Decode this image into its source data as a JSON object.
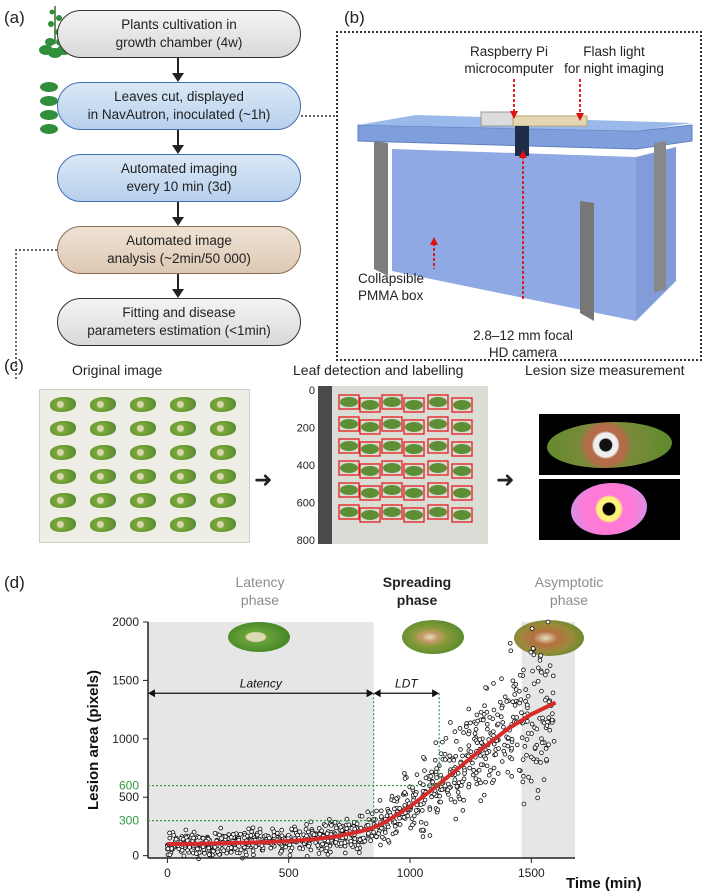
{
  "panels": {
    "a": "(a)",
    "b": "(b)",
    "c": "(c)",
    "d": "(d)"
  },
  "flow": [
    {
      "text": "Plants cultivation in\ngrowth chamber (4w)"
    },
    {
      "text": "Leaves cut, displayed\nin NavAutron, inoculated (~1h)"
    },
    {
      "text": "Automated imaging\nevery 10 min (3d)"
    },
    {
      "text": "Automated image\nanalysis (~2min/50 000)"
    },
    {
      "text": "Fitting and disease\nparameters estimation (<1min)"
    }
  ],
  "setup": {
    "raspberry": "Raspberry Pi\nmicrocomputer",
    "flash": "Flash light\nfor night imaging",
    "box": "Collapsible\nPMMA box",
    "camera": "2.8–12 mm focal\nHD camera"
  },
  "pipeline": {
    "original": "Original image",
    "detection": "Leaf detection and labelling",
    "lesion": "Lesion size measurement",
    "det_ticks": [
      "0",
      "200",
      "400",
      "600",
      "800"
    ]
  },
  "phases": {
    "latency": "Latency\nphase",
    "spreading": "Spreading\nphase",
    "asymptotic": "Asymptotic\nphase"
  },
  "annotations": {
    "latency": "Latency",
    "ldt": "LDT"
  },
  "colors": {
    "fit": "#d62b2b",
    "guide": "#2e9a3e",
    "shade": "#e6e6e6"
  },
  "chart_data": {
    "type": "scatter",
    "xlabel": "Time (min)",
    "ylabel": "Lesion area (pixels)",
    "xlim": [
      -80,
      1680
    ],
    "ylim": [
      -20,
      2000
    ],
    "x_ticks": [
      0,
      500,
      1000,
      1500
    ],
    "y_ticks": [
      0,
      500,
      1000,
      1500,
      2000
    ],
    "highlight_ticks": [
      300,
      600
    ],
    "latency_end": 850,
    "ldt_end": 1120,
    "asymptotic_start": 1460,
    "fit_curve": {
      "x": [
        0,
        100,
        200,
        300,
        400,
        500,
        600,
        700,
        800,
        850,
        900,
        1000,
        1100,
        1200,
        1300,
        1400,
        1500,
        1600
      ],
      "y": [
        100,
        100,
        105,
        110,
        115,
        125,
        140,
        165,
        210,
        240,
        290,
        420,
        580,
        750,
        920,
        1080,
        1210,
        1310
      ]
    }
  }
}
